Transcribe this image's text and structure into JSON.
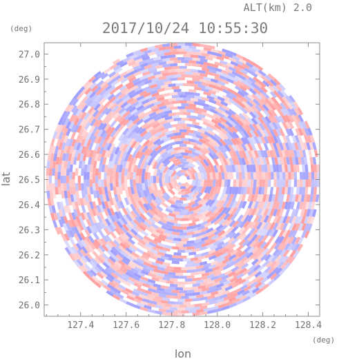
{
  "chart_data": {
    "type": "heatmap",
    "title": "2017/10/24 10:55:30",
    "subtitle": "ALT(km) 2.0",
    "xlabel": "lon",
    "ylabel": "lat",
    "x_unit": "(deg)",
    "y_unit": "(deg)",
    "xlim": [
      127.24,
      128.45
    ],
    "ylim": [
      25.955,
      27.045
    ],
    "x_ticks": [
      127.4,
      127.6,
      127.8,
      128.0,
      128.2,
      128.4
    ],
    "x_tick_labels": [
      "127.4",
      "127.6",
      "127.8",
      "128.0",
      "128.2",
      "128.4"
    ],
    "y_ticks": [
      26.0,
      26.1,
      26.2,
      26.3,
      26.4,
      26.5,
      26.6,
      26.7,
      26.8,
      26.9,
      27.0
    ],
    "y_tick_labels": [
      "26.0",
      "26.1",
      "26.2",
      "26.3",
      "26.4",
      "26.5",
      "26.6",
      "26.7",
      "26.8",
      "26.9",
      "27.0"
    ],
    "radar_center": {
      "lon": 127.85,
      "lat": 26.5
    },
    "radar_range_deg_lat": 0.545,
    "colors": {
      "positive": "#ff9a9a",
      "negative": "#9a9aff",
      "axis": "#888888",
      "text": "#707070"
    }
  }
}
